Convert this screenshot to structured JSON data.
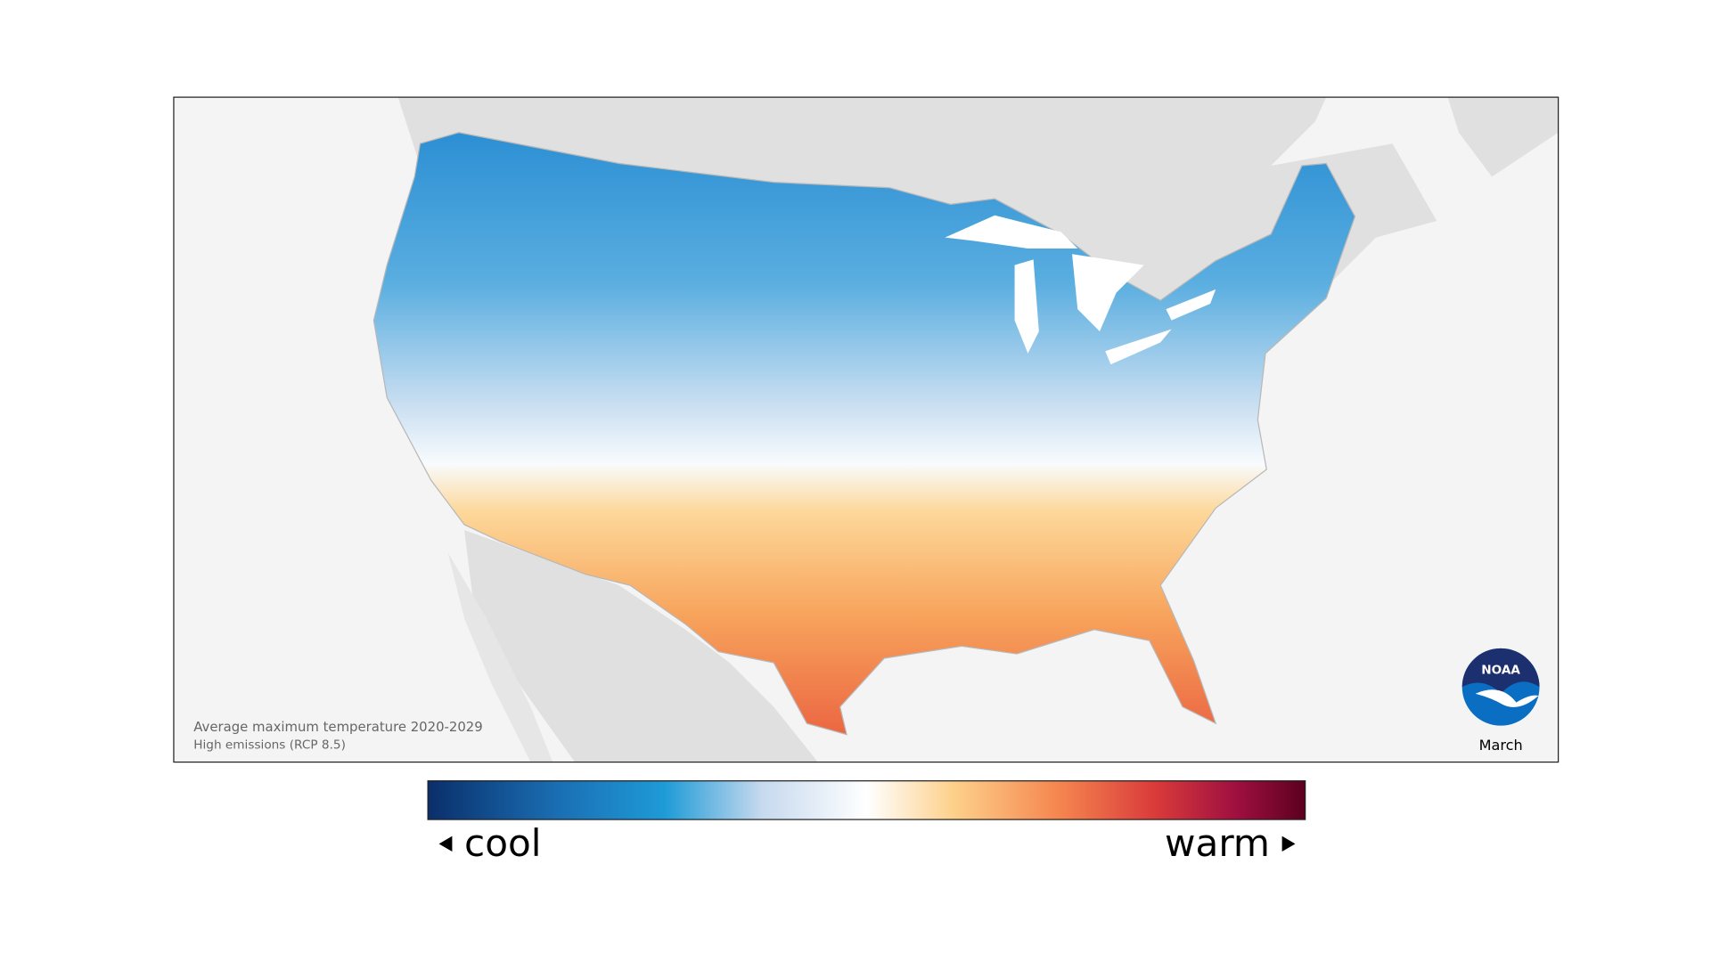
{
  "map": {
    "caption": "Average maximum temperature 2020-2029",
    "subcaption": "High emissions (RCP 8.5)",
    "month": "March",
    "logo": "NOAA"
  },
  "legend": {
    "low": "cool",
    "high": "warm"
  }
}
